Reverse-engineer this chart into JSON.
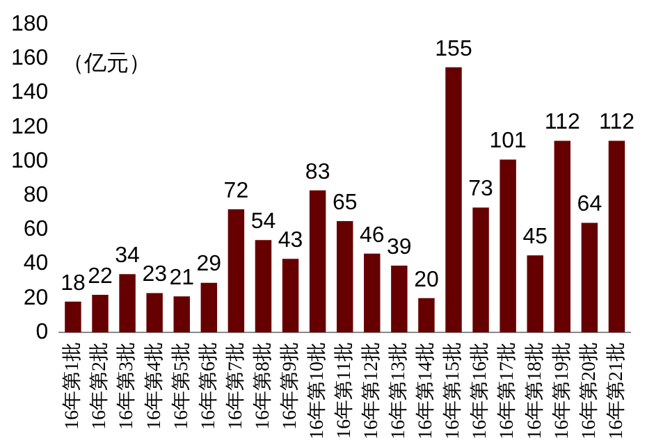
{
  "chart_data": {
    "type": "bar",
    "ylabel": "（亿元）",
    "categories": [
      "16年第1批",
      "16年第2批",
      "16年第3批",
      "16年第4批",
      "16年第5批",
      "16年第6批",
      "16年第7批",
      "16年第8批",
      "16年第9批",
      "16年第10批",
      "16年第11批",
      "16年第12批",
      "16年第13批",
      "16年第14批",
      "16年第15批",
      "16年第16批",
      "16年第17批",
      "16年第18批",
      "16年第19批",
      "16年第20批",
      "16年第21批"
    ],
    "values": [
      18,
      22,
      34,
      23,
      21,
      29,
      72,
      54,
      43,
      83,
      65,
      46,
      39,
      20,
      155,
      73,
      101,
      45,
      112,
      64,
      112
    ],
    "color": "#660000",
    "ylim": [
      0,
      180
    ],
    "yticks": [
      0,
      20,
      40,
      60,
      80,
      100,
      120,
      140,
      160,
      180
    ],
    "grid": false,
    "legend": false,
    "data_labels": true
  }
}
